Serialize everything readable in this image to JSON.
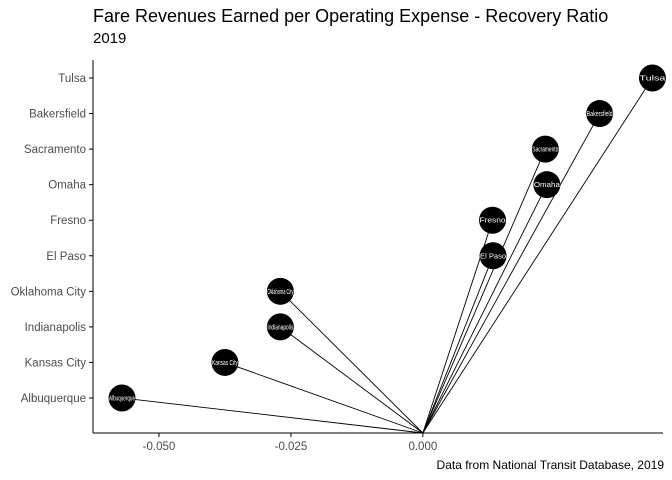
{
  "chart_data": {
    "type": "scatter",
    "title": "Fare Revenues Earned per Operating Expense - Recovery Ratio",
    "subtitle": "2019",
    "caption": "Data from National Transit Database, 2019",
    "xlabel": "",
    "ylabel": "",
    "x_ticks": [
      -0.05,
      -0.025,
      0.0
    ],
    "x_tick_labels": [
      "-0.050",
      "-0.025",
      "0.000"
    ],
    "xlim": [
      -0.0625,
      0.0455
    ],
    "categories": [
      "Albuquerque",
      "Kansas City",
      "Indianapolis",
      "Oklahoma City",
      "El Paso",
      "Fresno",
      "Omaha",
      "Sacramento",
      "Bakersfield",
      "Tulsa"
    ],
    "values": [
      -0.057,
      -0.0375,
      -0.027,
      -0.027,
      0.0133,
      0.0132,
      0.0235,
      0.0232,
      0.0335,
      0.0435
    ],
    "point_labels": [
      "Albuquerque",
      "Kansas City",
      "Indianapolis",
      "Oklahoma City",
      "El Paso",
      "Fresno",
      "Omaha",
      "Sacramento",
      "Bakersfield",
      "Tulsa"
    ],
    "segment_origin": [
      0,
      0
    ],
    "grid": false,
    "colors": {
      "point": "#000000",
      "segment": "#000000",
      "point_label": "#ffffff",
      "axis": "#000000",
      "tick_label": "#4d4d4d"
    }
  }
}
